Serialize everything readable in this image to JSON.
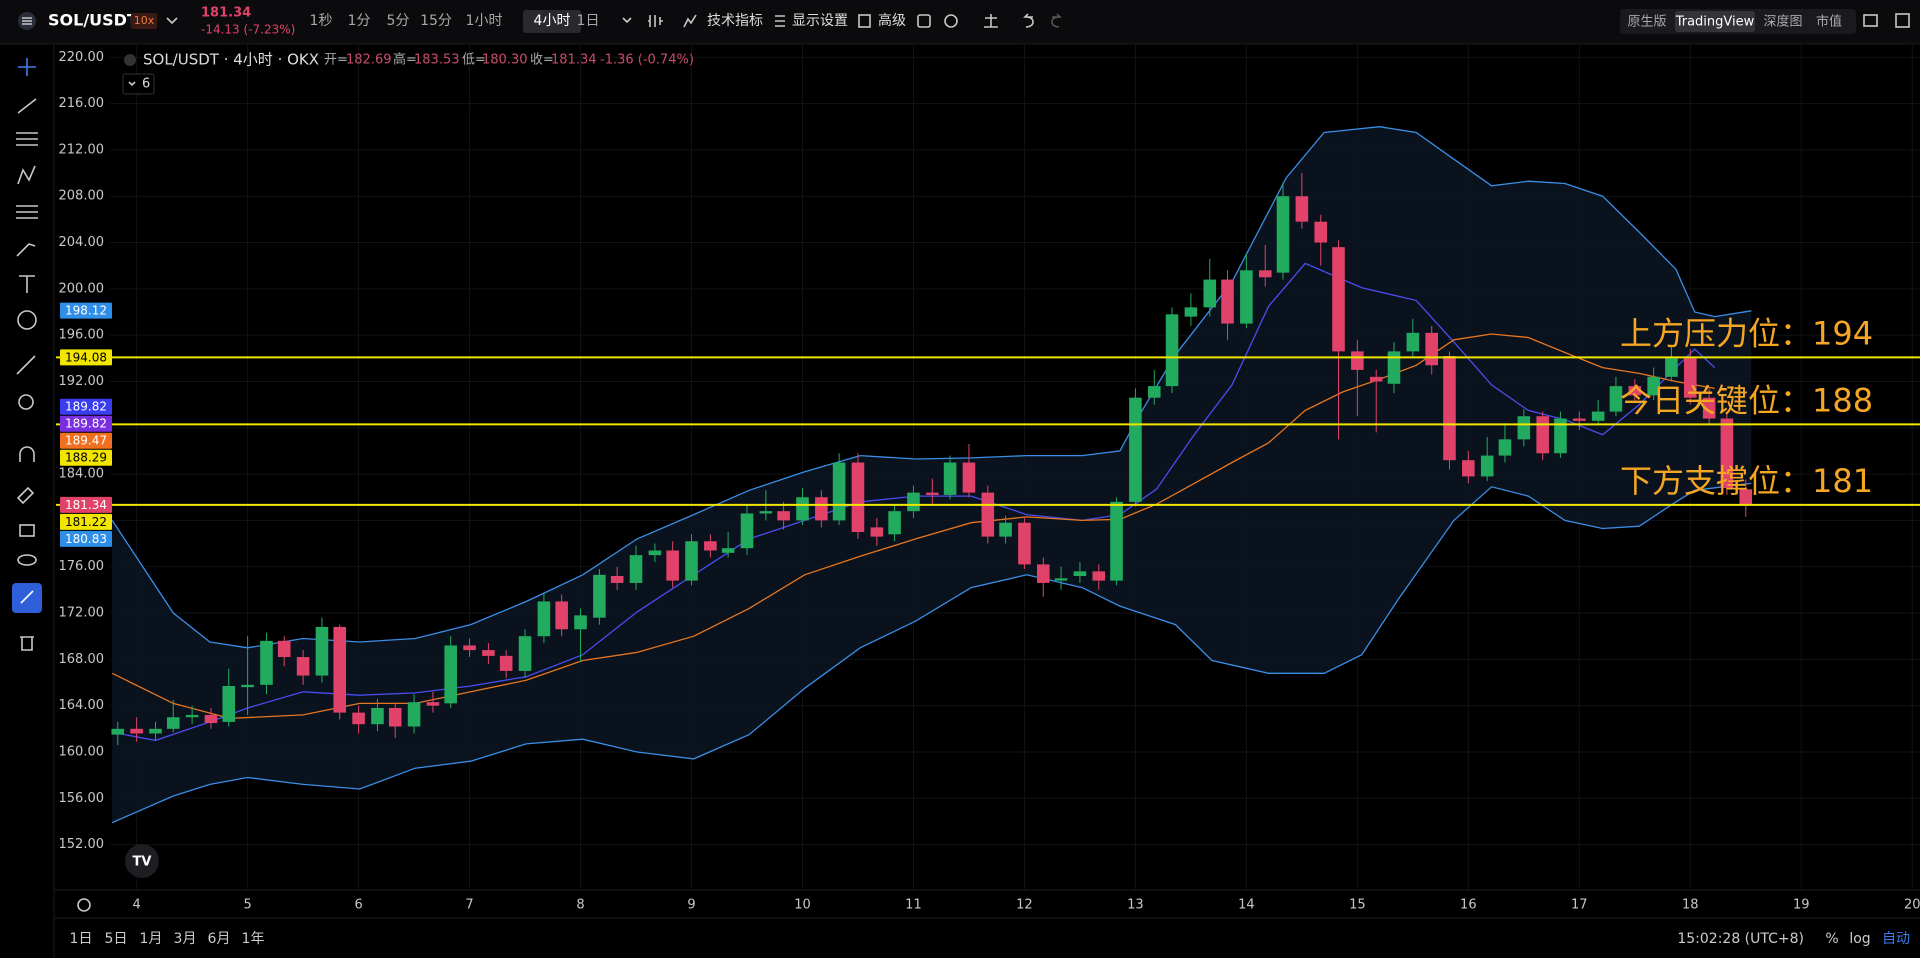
{
  "toolbar": {
    "symbol": "SOL/USDT",
    "leverage": "10x",
    "last_price": "181.34",
    "change": "-14.13 (-7.23%)",
    "intervals": [
      "1秒",
      "1分",
      "5分",
      "15分",
      "1小时",
      "4小时",
      "1日"
    ],
    "tools": [
      "技术指标",
      "显示设置",
      "高级"
    ],
    "views": [
      "原生版",
      "TradingView",
      "深度图",
      "市值"
    ]
  },
  "legend": {
    "title": "SOL/USDT · 4小时 · OKX",
    "open_label": "开=",
    "open": "182.69",
    "high_label": "高=",
    "high": "183.53",
    "low_label": "低=",
    "low": "180.30",
    "close_label": "收=",
    "close": "181.34",
    "change": "-1.36 (-0.74%)",
    "indicators": "6"
  },
  "bottom_bar": {
    "ranges": [
      "1日",
      "5日",
      "1月",
      "3月",
      "6月",
      "1年"
    ],
    "clock": "15:02:28 (UTC+8)",
    "percent": "%",
    "log": "log",
    "auto": "自动"
  },
  "chart_data": {
    "type": "candlestick",
    "up_color": "#22ab5e",
    "down_color": "#e0426a",
    "xlim": [
      3.76,
      20.07
    ],
    "xticks": [
      4,
      5,
      6,
      7,
      8,
      9,
      10,
      11,
      12,
      13,
      14,
      15,
      16,
      17,
      18,
      19,
      20
    ],
    "ylim": [
      148.08,
      221.06
    ],
    "yticks": [
      {
        "value": 220,
        "label": "220.00"
      },
      {
        "value": 216,
        "label": "216.00"
      },
      {
        "value": 212,
        "label": "212.00"
      },
      {
        "value": 208,
        "label": "208.00"
      },
      {
        "value": 204,
        "label": "204.00"
      },
      {
        "value": 200,
        "label": "200.00"
      },
      {
        "value": 196,
        "label": "196.00"
      },
      {
        "value": 192,
        "label": "192.00"
      },
      {
        "value": 188,
        "label": "188.00"
      },
      {
        "value": 184,
        "label": "184.00"
      },
      {
        "value": 180,
        "label": "180.00"
      },
      {
        "value": 176,
        "label": "176.00"
      },
      {
        "value": 172,
        "label": "172.00"
      },
      {
        "value": 168,
        "label": "168.00"
      },
      {
        "value": 164,
        "label": "164.00"
      },
      {
        "value": 160,
        "label": "160.00"
      },
      {
        "value": 156,
        "label": "156.00"
      },
      {
        "value": 152,
        "label": "152.00"
      }
    ],
    "grid": true,
    "x": [
      3.83,
      4,
      4.17,
      4.33,
      4.5,
      4.67,
      4.83,
      5,
      5.17,
      5.33,
      5.5,
      5.67,
      5.83,
      6,
      6.17,
      6.33,
      6.5,
      6.67,
      6.83,
      7,
      7.17,
      7.33,
      7.5,
      7.67,
      7.83,
      8,
      8.17,
      8.33,
      8.5,
      8.67,
      8.83,
      9,
      9.17,
      9.33,
      9.5,
      9.67,
      9.83,
      10,
      10.17,
      10.33,
      10.5,
      10.67,
      10.83,
      11,
      11.17,
      11.33,
      11.5,
      11.67,
      11.83,
      12,
      12.17,
      12.33,
      12.5,
      12.67,
      12.83,
      13,
      13.17,
      13.33,
      13.5,
      13.67,
      13.83,
      14,
      14.17,
      14.33,
      14.5,
      14.67,
      14.83,
      15,
      15.17,
      15.33,
      15.5,
      15.67,
      15.83,
      16,
      16.17,
      16.33,
      16.5,
      16.67,
      16.83,
      17,
      17.17,
      17.33,
      17.5,
      17.67,
      17.83,
      18,
      18.17,
      18.33,
      18.5
    ],
    "open": [
      161.5,
      162.0,
      161.6,
      162.0,
      163.0,
      163.2,
      162.6,
      165.6,
      165.8,
      169.6,
      168.2,
      166.6,
      170.8,
      163.4,
      162.4,
      163.8,
      162.2,
      164.3,
      164.2,
      169.2,
      168.8,
      168.3,
      167.0,
      170.0,
      173.0,
      170.6,
      171.6,
      175.2,
      174.6,
      177.0,
      177.4,
      174.8,
      178.2,
      177.2,
      177.6,
      180.6,
      180.8,
      180.0,
      182.0,
      180.0,
      185.0,
      179.4,
      178.8,
      180.8,
      182.4,
      182.2,
      185.0,
      182.4,
      178.6,
      179.8,
      176.2,
      174.8,
      175.2,
      175.6,
      174.8,
      181.6,
      190.6,
      191.6,
      197.6,
      198.4,
      200.8,
      197.0,
      201.6,
      201.4,
      208.0,
      205.8,
      203.6,
      194.6,
      192.4,
      191.8,
      194.6,
      196.2,
      194.2,
      185.2,
      183.8,
      185.6,
      187.0,
      189.0,
      185.8,
      188.8,
      188.6,
      189.4,
      191.6,
      190.8,
      192.4,
      194.0,
      190.6,
      188.8,
      182.69
    ],
    "high": [
      162.6,
      163.0,
      162.6,
      164.5,
      164.0,
      163.8,
      167.2,
      170.0,
      170.3,
      170.0,
      168.8,
      171.6,
      171.0,
      164.0,
      164.6,
      164.2,
      165.0,
      165.2,
      170.0,
      169.8,
      169.4,
      168.8,
      170.6,
      173.8,
      173.6,
      172.4,
      175.8,
      176.0,
      177.8,
      178.0,
      178.2,
      178.8,
      178.8,
      179.0,
      181.4,
      182.6,
      181.6,
      182.8,
      182.6,
      185.8,
      185.8,
      180.2,
      181.4,
      183.0,
      183.6,
      185.6,
      186.6,
      183.0,
      180.4,
      180.2,
      176.8,
      176.0,
      176.4,
      176.2,
      182.0,
      191.4,
      193.0,
      198.4,
      199.6,
      202.6,
      201.6,
      203.0,
      203.8,
      209.2,
      210.0,
      206.4,
      204.2,
      195.6,
      193.0,
      195.4,
      197.4,
      196.8,
      194.6,
      186.0,
      187.2,
      188.4,
      189.6,
      189.4,
      189.4,
      189.4,
      190.4,
      192.4,
      192.2,
      193.2,
      195.0,
      194.8,
      191.4,
      189.4,
      183.53
    ],
    "low": [
      160.6,
      160.9,
      161.0,
      161.7,
      162.4,
      162.0,
      162.2,
      163.2,
      165.0,
      167.4,
      165.8,
      166.0,
      162.8,
      161.6,
      161.8,
      161.2,
      161.6,
      163.4,
      163.8,
      168.2,
      167.6,
      166.4,
      166.4,
      169.4,
      170.0,
      167.8,
      171.0,
      174.0,
      174.0,
      176.4,
      174.2,
      174.4,
      176.8,
      176.8,
      177.0,
      180.0,
      179.2,
      179.6,
      179.4,
      179.6,
      178.4,
      177.8,
      178.2,
      180.2,
      181.4,
      181.8,
      182.0,
      178.0,
      178.0,
      175.8,
      173.4,
      174.0,
      174.6,
      174.0,
      174.4,
      181.2,
      190.0,
      191.0,
      196.8,
      197.6,
      195.6,
      196.6,
      200.2,
      200.8,
      205.2,
      202.0,
      187.0,
      189.0,
      187.6,
      191.0,
      194.0,
      192.6,
      184.4,
      183.2,
      183.4,
      185.0,
      186.4,
      185.2,
      185.4,
      187.8,
      188.2,
      189.0,
      190.2,
      190.4,
      192.0,
      190.0,
      188.2,
      182.2,
      180.3
    ],
    "close": [
      162.0,
      161.6,
      162.0,
      163.0,
      163.2,
      162.5,
      165.7,
      165.8,
      169.6,
      168.2,
      166.6,
      170.8,
      163.4,
      162.4,
      163.8,
      162.2,
      164.3,
      164.0,
      169.2,
      168.8,
      168.3,
      167.0,
      170.0,
      173.0,
      170.6,
      171.8,
      175.3,
      174.6,
      177.0,
      177.4,
      174.8,
      178.2,
      177.4,
      177.6,
      180.6,
      180.8,
      180.0,
      182.0,
      180.0,
      185.0,
      179.0,
      178.6,
      180.8,
      182.4,
      182.2,
      185.0,
      182.4,
      178.6,
      179.8,
      176.2,
      174.6,
      175.0,
      175.6,
      174.8,
      181.6,
      190.6,
      191.6,
      197.8,
      198.4,
      200.8,
      197.0,
      201.6,
      201.0,
      208.0,
      205.8,
      204.0,
      194.6,
      193.0,
      192.0,
      194.6,
      196.2,
      193.4,
      185.2,
      183.8,
      185.6,
      187.0,
      189.0,
      185.8,
      188.8,
      188.6,
      189.4,
      191.6,
      190.8,
      192.4,
      194.0,
      190.6,
      188.8,
      182.8,
      181.34
    ],
    "lines": [
      {
        "color": "#3a8ee6",
        "x": [
          3.78,
          4.33,
          4.66,
          5.0,
          5.5,
          6.01,
          6.51,
          7.01,
          7.51,
          8.02,
          8.51,
          9.02,
          9.52,
          10.02,
          10.52,
          11.02,
          11.52,
          12.02,
          12.52,
          12.86,
          13.03,
          13.36,
          13.87,
          14.36,
          14.7,
          15.2,
          15.53,
          15.87,
          16.21,
          16.54,
          16.87,
          17.21,
          17.54,
          17.87,
          18.04,
          18.22,
          18.55
        ],
        "values": [
          180,
          172,
          169.5,
          169,
          169.8,
          169.5,
          169.8,
          171,
          173,
          175.3,
          178.4,
          180.5,
          182.6,
          184.2,
          185.6,
          185.3,
          185.4,
          185.6,
          185.6,
          186,
          189,
          194.3,
          200.6,
          209.6,
          213.5,
          214,
          213.5,
          211.2,
          208.9,
          209.3,
          209.1,
          208,
          204.9,
          201.7,
          198,
          197.6,
          198.1
        ]
      },
      {
        "color": "#3a8ee6",
        "x": [
          3.78,
          4.33,
          4.66,
          5.0,
          5.5,
          6.01,
          6.51,
          7.01,
          7.51,
          8.02,
          8.51,
          9.02,
          9.52,
          10.02,
          10.52,
          11.02,
          11.52,
          12.02,
          12.52,
          12.86,
          13.36,
          13.69,
          14.2,
          14.7,
          15.04,
          15.37,
          15.87,
          16.21,
          16.54,
          16.87,
          17.21,
          17.54,
          17.87,
          18.04,
          18.55
        ],
        "values": [
          153.9,
          156.2,
          157.2,
          157.8,
          157.2,
          156.8,
          158.6,
          159.2,
          160.7,
          161.1,
          160,
          159.4,
          161.5,
          165.5,
          169,
          171.3,
          174.2,
          175.3,
          174.2,
          172.6,
          171,
          167.9,
          166.8,
          166.8,
          168.4,
          173.2,
          180,
          182.9,
          182.1,
          180,
          179.3,
          179.5,
          181.6,
          182.6,
          183.2
        ]
      },
      {
        "color": "#4a4cf0",
        "x": [
          3.78,
          4.17,
          4.66,
          5.0,
          5.5,
          6.01,
          6.51,
          7.01,
          7.51,
          8.02,
          8.51,
          9.02,
          9.52,
          10.02,
          10.52,
          11.02,
          11.52,
          12.02,
          12.52,
          12.86,
          13.19,
          13.53,
          13.87,
          14.2,
          14.53,
          14.7,
          15.04,
          15.53,
          15.87,
          16.21,
          16.54,
          16.87,
          17.21,
          17.54,
          17.87,
          18.04,
          18.22
        ],
        "values": [
          161.7,
          161,
          162.6,
          163.8,
          165.2,
          164.9,
          165.1,
          165.7,
          166.5,
          168.4,
          172.1,
          175.3,
          178.4,
          180,
          181.6,
          182.1,
          182.1,
          180.5,
          180,
          180.5,
          182.7,
          187.4,
          191.7,
          198.5,
          202.2,
          201.5,
          200.1,
          199,
          195.4,
          191.7,
          189.5,
          188.7,
          187.4,
          190,
          193.2,
          194.8,
          193.2
        ]
      },
      {
        "color": "#e8761f",
        "x": [
          3.78,
          4.33,
          4.84,
          5.5,
          6.01,
          6.51,
          7.01,
          7.51,
          8.02,
          8.51,
          9.02,
          9.52,
          10.02,
          10.52,
          11.02,
          11.52,
          12.02,
          12.52,
          12.86,
          13.19,
          13.53,
          13.87,
          14.2,
          14.53,
          14.87,
          15.2,
          15.53,
          15.87,
          16.21,
          16.54,
          16.87,
          17.21,
          17.54,
          17.87,
          18.22
        ],
        "values": [
          166.8,
          164.2,
          162.9,
          163.2,
          164.2,
          164.2,
          165.2,
          166.2,
          167.9,
          168.6,
          170,
          172.4,
          175.3,
          176.9,
          178.4,
          179.8,
          180.3,
          180,
          180.1,
          181.4,
          183.2,
          185,
          186.7,
          189.5,
          191.1,
          192.2,
          193.4,
          195.6,
          196.1,
          195.8,
          194.5,
          193.2,
          192.7,
          192,
          191.4
        ]
      }
    ],
    "levels": [
      {
        "value": 194.08,
        "color": "#f2e600",
        "label": "上方压力位：194"
      },
      {
        "value": 188.29,
        "color": "#f2e600",
        "label": "今日关键位：188"
      },
      {
        "value": 181.34,
        "color": "#f2e600",
        "label": "下方支撑位：181"
      }
    ],
    "annotation_color": "#f5a623",
    "price_badges": [
      {
        "value": 198.12,
        "color": "#2f8fe8",
        "text_color": "#ffffff"
      },
      {
        "value": 194.08,
        "color": "#f2e600",
        "text_color": "#000000"
      },
      {
        "value": 189.82,
        "color": "#3a3cf0",
        "text_color": "#ffffff"
      },
      {
        "value": 189.82,
        "color": "#7a2ee0",
        "text_color": "#ffffff"
      },
      {
        "value": 189.47,
        "color": "#f07020",
        "text_color": "#ffffff"
      },
      {
        "value": 188.29,
        "color": "#f2e600",
        "text_color": "#000000"
      },
      {
        "value": 181.34,
        "color": "#e0426a",
        "text_color": "#ffffff"
      },
      {
        "value": 181.22,
        "color": "#f2e600",
        "text_color": "#000000"
      },
      {
        "value": 180.83,
        "color": "#2f8fe8",
        "text_color": "#ffffff"
      }
    ]
  }
}
